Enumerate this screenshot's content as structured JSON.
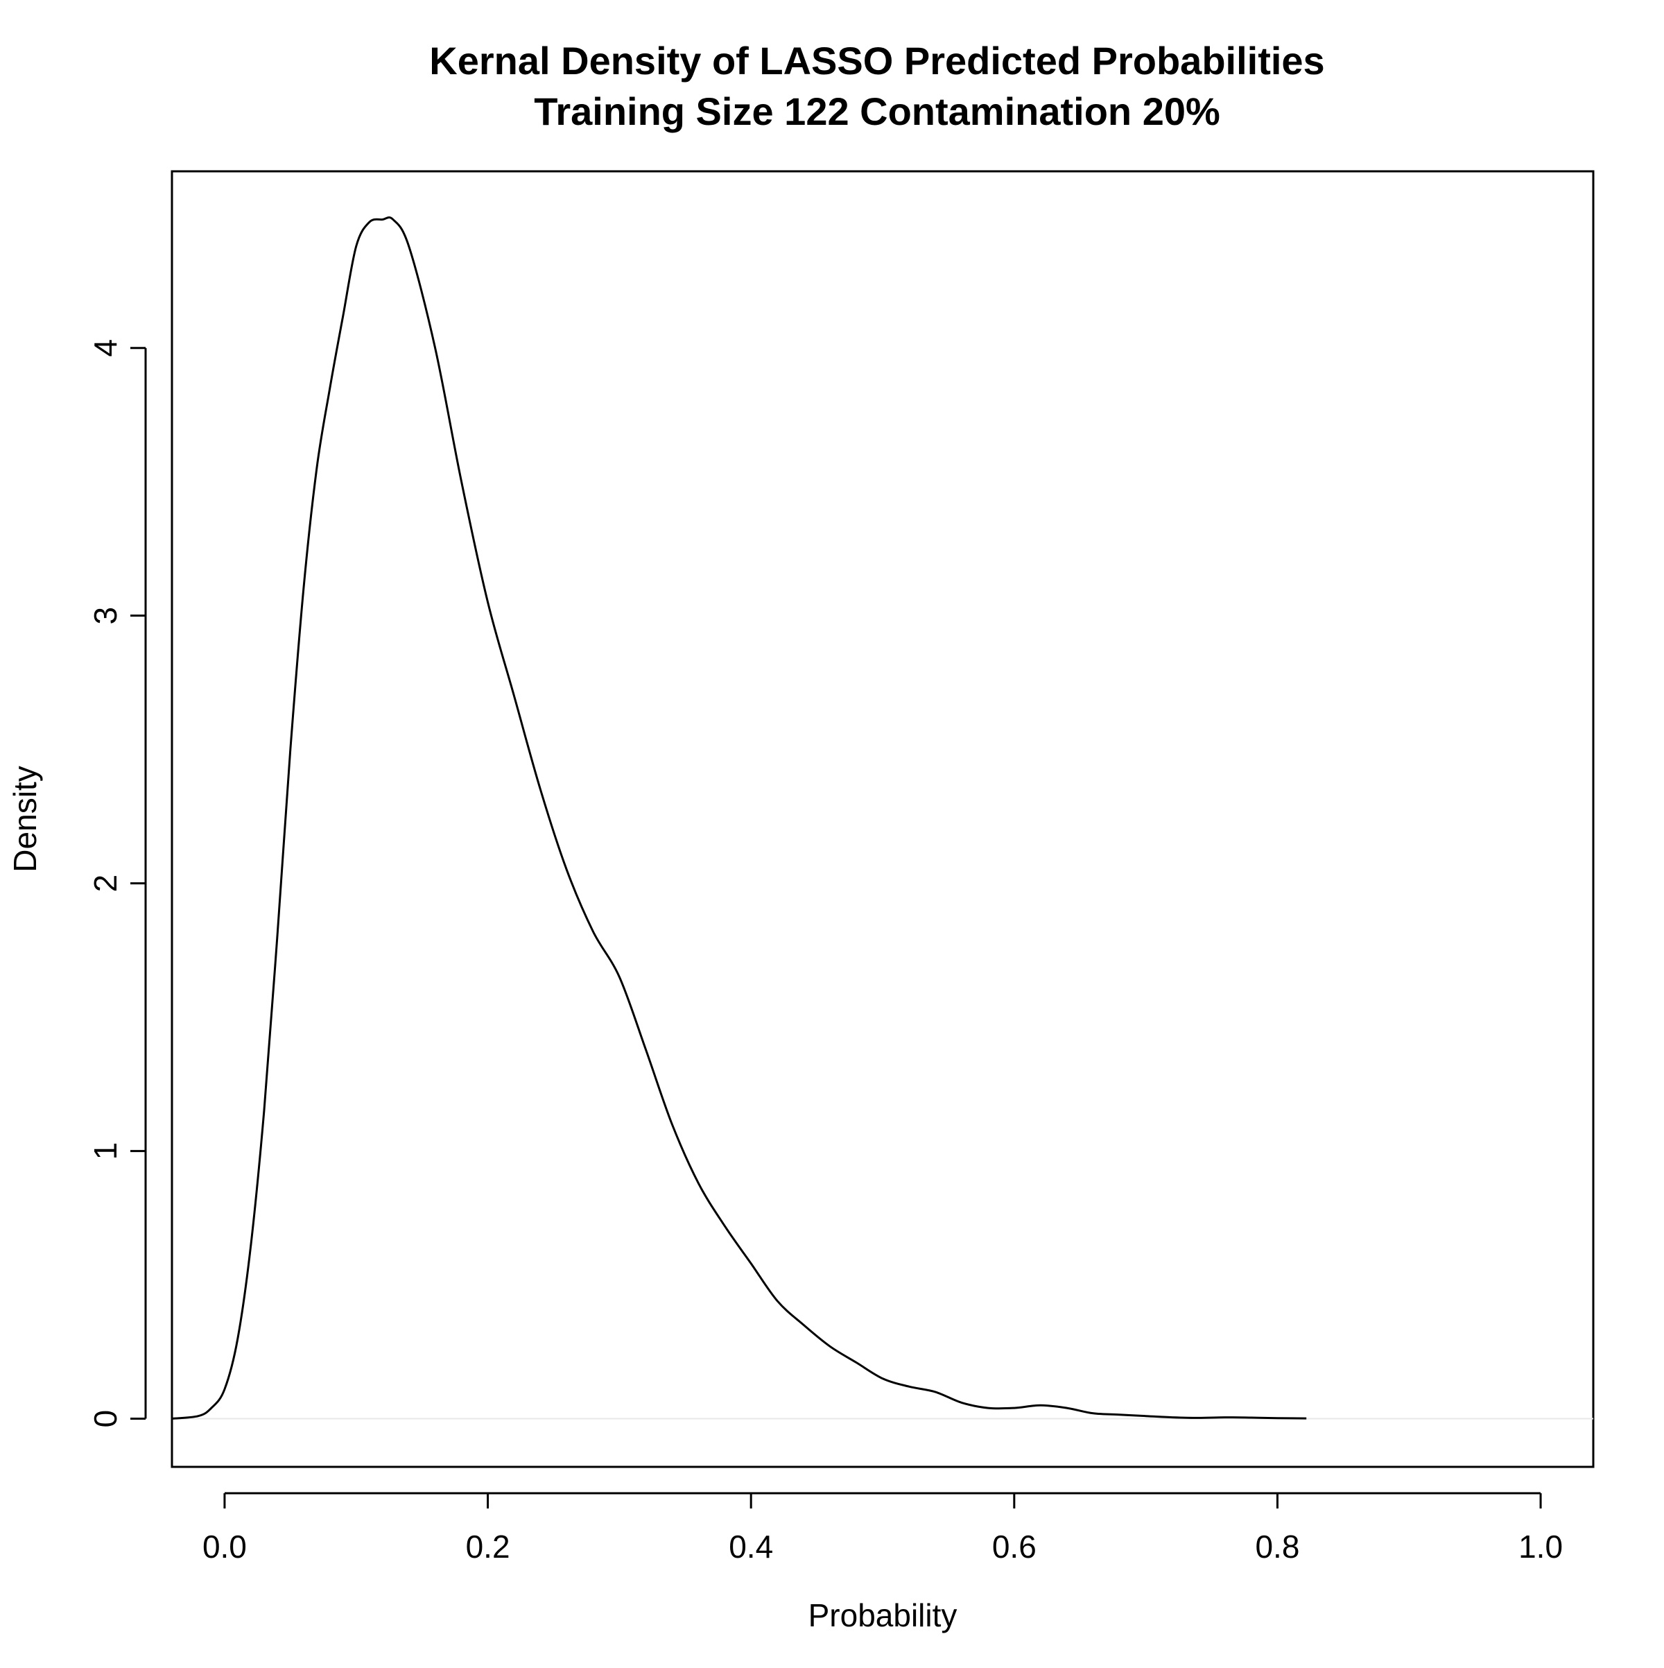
{
  "chart_data": {
    "type": "line",
    "title": "Kernal Density of LASSO Predicted Probabilities",
    "subtitle": "Training Size 122 Contamination 20%",
    "xlabel": "Probability",
    "ylabel": "Density",
    "xlim": [
      -0.04,
      1.04
    ],
    "ylim": [
      -0.18,
      4.66
    ],
    "x_ticks": [
      0.0,
      0.2,
      0.4,
      0.6,
      0.8,
      1.0
    ],
    "x_tick_labels": [
      "0.0",
      "0.2",
      "0.4",
      "0.6",
      "0.8",
      "1.0"
    ],
    "y_ticks": [
      0,
      1,
      2,
      3,
      4
    ],
    "y_tick_labels": [
      "0",
      "1",
      "2",
      "3",
      "4"
    ],
    "grid": false,
    "baseline": 0,
    "series": [
      {
        "color": "#000000",
        "x": [
          -0.04,
          -0.02,
          -0.01,
          0.0,
          0.01,
          0.02,
          0.03,
          0.04,
          0.05,
          0.06,
          0.07,
          0.08,
          0.09,
          0.1,
          0.11,
          0.12,
          0.128,
          0.14,
          0.16,
          0.18,
          0.2,
          0.22,
          0.24,
          0.26,
          0.28,
          0.3,
          0.32,
          0.34,
          0.36,
          0.38,
          0.4,
          0.42,
          0.44,
          0.46,
          0.48,
          0.5,
          0.52,
          0.54,
          0.56,
          0.58,
          0.6,
          0.62,
          0.64,
          0.66,
          0.68,
          0.7,
          0.72,
          0.74,
          0.76,
          0.78,
          0.8,
          0.822
        ],
        "y": [
          0.0,
          0.01,
          0.04,
          0.11,
          0.3,
          0.65,
          1.15,
          1.8,
          2.5,
          3.1,
          3.55,
          3.85,
          4.12,
          4.38,
          4.47,
          4.48,
          4.48,
          4.38,
          4.0,
          3.5,
          3.05,
          2.7,
          2.35,
          2.05,
          1.82,
          1.65,
          1.38,
          1.1,
          0.88,
          0.72,
          0.58,
          0.44,
          0.35,
          0.27,
          0.21,
          0.15,
          0.12,
          0.1,
          0.06,
          0.04,
          0.04,
          0.05,
          0.04,
          0.02,
          0.015,
          0.01,
          0.005,
          0.003,
          0.005,
          0.004,
          0.002,
          0.001
        ]
      }
    ]
  }
}
